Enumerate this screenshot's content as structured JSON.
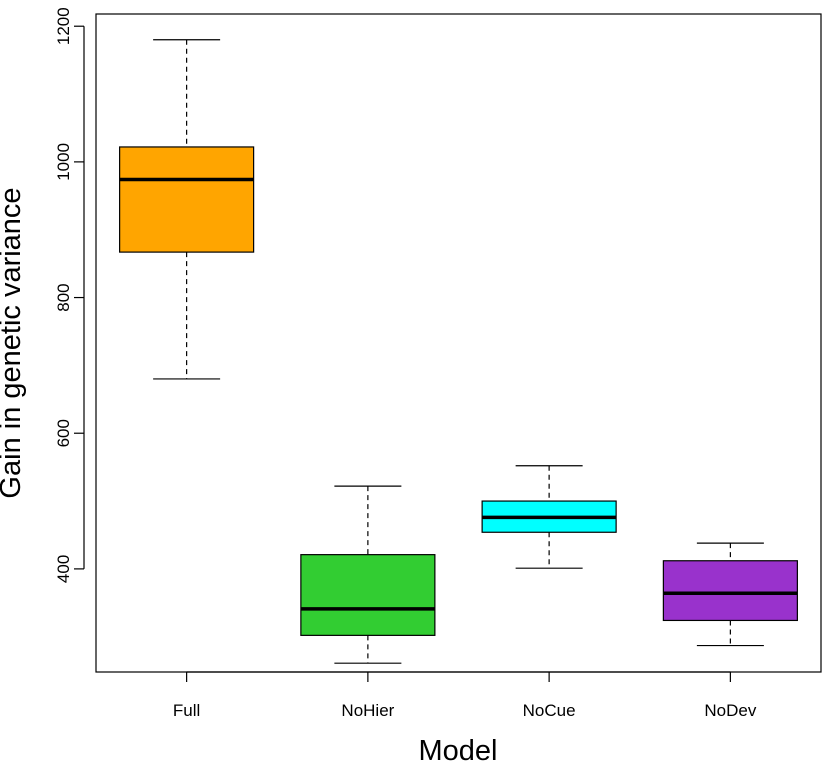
{
  "chart_data": {
    "type": "boxplot",
    "title": "",
    "xlabel": "Model",
    "ylabel": "Gain in genetic variance",
    "ylim": [
      248,
      1218
    ],
    "yticks": [
      400,
      600,
      800,
      1000,
      1200
    ],
    "categories": [
      "Full",
      "NoHier",
      "NoCue",
      "NoDev"
    ],
    "boxes": [
      {
        "label": "Full",
        "min": 680,
        "q1": 867,
        "median": 974,
        "q3": 1022,
        "max": 1180,
        "color": "#FFA500"
      },
      {
        "label": "NoHier",
        "min": 261,
        "q1": 302,
        "median": 341,
        "q3": 421,
        "max": 522,
        "color": "#32CD32"
      },
      {
        "label": "NoCue",
        "min": 401,
        "q1": 454,
        "median": 476,
        "q3": 500,
        "max": 552,
        "color": "#00FFFF"
      },
      {
        "label": "NoDev",
        "min": 287,
        "q1": 324,
        "median": 364,
        "q3": 412,
        "max": 438,
        "color": "#9932CC"
      }
    ]
  }
}
